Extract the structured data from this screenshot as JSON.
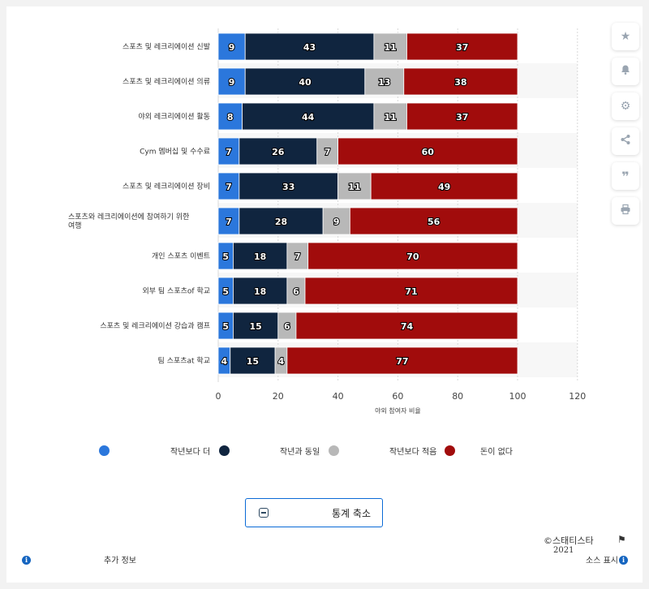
{
  "chart_data": {
    "type": "bar",
    "stacked": true,
    "orientation": "horizontal",
    "categories": [
      "스포츠 및 레크리에이션 신발",
      "스포츠 및 레크리에이션 의류",
      "야외 레크리에이션 활동",
      "Cym 멤버십 및 수수료",
      "스포츠 및 레크리에이션 장비",
      "스포츠와 레크리에이션에 참여하기 위한 여행",
      "개인 스포츠 이벤트",
      "외부 팀 스포츠of 학교",
      "스포츠 및 레크리에이션 강습과 캠프",
      "팀 스포츠at 학교"
    ],
    "series": [
      {
        "name": "작년보다 더",
        "color": "#2b77dc",
        "values": [
          9,
          9,
          8,
          7,
          7,
          7,
          5,
          5,
          5,
          4
        ]
      },
      {
        "name": "작년과 동일",
        "color": "#10253f",
        "values": [
          43,
          40,
          44,
          26,
          33,
          28,
          18,
          18,
          15,
          15
        ]
      },
      {
        "name": "작년보다 적음",
        "color": "#b8b8b8",
        "values": [
          11,
          13,
          11,
          7,
          11,
          9,
          7,
          6,
          6,
          4
        ]
      },
      {
        "name": "돈이 없다",
        "color": "#a10c0c",
        "values": [
          37,
          38,
          37,
          60,
          49,
          56,
          70,
          71,
          74,
          77
        ]
      }
    ],
    "xlim": [
      0,
      120
    ],
    "xticks": [
      0,
      20,
      40,
      60,
      80,
      100,
      120
    ],
    "xlabel": "야외 참여자 비율",
    "legend_position": "bottom",
    "grid": true
  },
  "legend": {
    "label_1": "작년보다 더",
    "label_2": "작년과 동일",
    "label_3": "작년보다 적음",
    "label_4": "돈이 없다"
  },
  "sidebar": {
    "icons": [
      "star-icon",
      "bell-icon",
      "gear-icon",
      "share-icon",
      "quote-icon",
      "print-icon"
    ]
  },
  "collapse_button": {
    "label": "통계 축소"
  },
  "footer": {
    "more_info": "추가 정보",
    "copyright": "©스태티스타",
    "year": "2021",
    "source": "소스 표시"
  }
}
